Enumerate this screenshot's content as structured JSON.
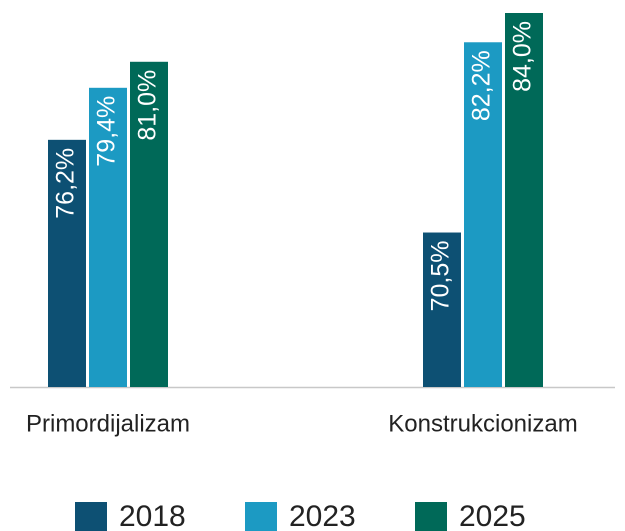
{
  "chart_data": {
    "type": "bar",
    "categories": [
      "Primordijalizam",
      "Konstrukcionizam"
    ],
    "series": [
      {
        "name": "2018",
        "color": "#0d5073",
        "values": [
          76.2,
          70.5
        ],
        "value_labels": [
          "76,2%",
          "70,5%"
        ]
      },
      {
        "name": "2023",
        "color": "#1c9ac3",
        "values": [
          79.4,
          82.2
        ],
        "value_labels": [
          "79,4%",
          "82,2%"
        ]
      },
      {
        "name": "2025",
        "color": "#006958",
        "values": [
          81.0,
          84.0
        ],
        "value_labels": [
          "81,0%",
          "84,0%"
        ]
      }
    ],
    "ylim": [
      61,
      84
    ],
    "legend": "bottom"
  }
}
